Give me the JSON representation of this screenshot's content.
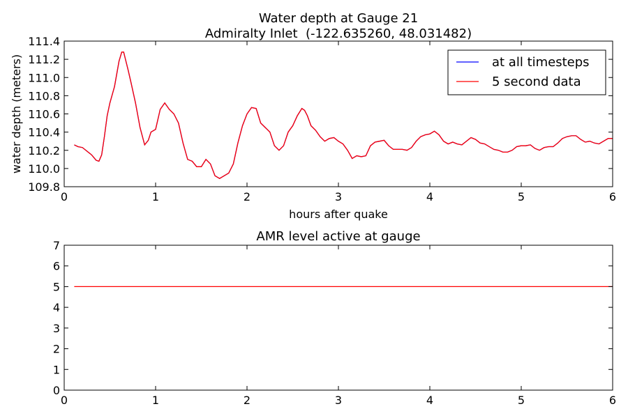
{
  "chart_data": [
    {
      "type": "line",
      "title": "Water depth at Gauge 21",
      "subtitle": "Admiralty Inlet  (-122.635260, 48.031482)",
      "xlabel": "hours after quake",
      "ylabel": "water depth (meters)",
      "xlim": [
        0,
        6
      ],
      "ylim": [
        109.8,
        111.4
      ],
      "xticks": [
        "0",
        "1",
        "2",
        "3",
        "4",
        "5",
        "6"
      ],
      "yticks": [
        "109.8",
        "110.0",
        "110.2",
        "110.4",
        "110.6",
        "110.8",
        "111.0",
        "111.2",
        "111.4"
      ],
      "grid": false,
      "legend_position": "top-right",
      "series": [
        {
          "name": "at all timesteps",
          "color": "#0000ff",
          "x": [
            0.11,
            0.15,
            0.2,
            0.25,
            0.3,
            0.35,
            0.38,
            0.41,
            0.44,
            0.47,
            0.5,
            0.55,
            0.6,
            0.63,
            0.65,
            0.67,
            0.7,
            0.73,
            0.78,
            0.83,
            0.88,
            0.92,
            0.95,
            1.0,
            1.05,
            1.1,
            1.15,
            1.2,
            1.25,
            1.3,
            1.35,
            1.4,
            1.45,
            1.5,
            1.55,
            1.6,
            1.65,
            1.7,
            1.75,
            1.8,
            1.85,
            1.9,
            1.95,
            2.0,
            2.05,
            2.1,
            2.15,
            2.2,
            2.25,
            2.3,
            2.35,
            2.4,
            2.45,
            2.5,
            2.55,
            2.6,
            2.63,
            2.66,
            2.7,
            2.75,
            2.8,
            2.85,
            2.9,
            2.95,
            3.0,
            3.05,
            3.1,
            3.15,
            3.2,
            3.25,
            3.3,
            3.35,
            3.4,
            3.45,
            3.5,
            3.55,
            3.6,
            3.65,
            3.7,
            3.75,
            3.8,
            3.85,
            3.9,
            3.95,
            4.0,
            4.05,
            4.1,
            4.15,
            4.2,
            4.25,
            4.3,
            4.35,
            4.4,
            4.45,
            4.5,
            4.55,
            4.6,
            4.65,
            4.7,
            4.75,
            4.8,
            4.85,
            4.9,
            4.95,
            5.0,
            5.05,
            5.1,
            5.15,
            5.2,
            5.25,
            5.3,
            5.35,
            5.4,
            5.45,
            5.5,
            5.55,
            5.6,
            5.65,
            5.7,
            5.75,
            5.8,
            5.85,
            5.9,
            5.95,
            6.0
          ],
          "values": [
            110.26,
            110.24,
            110.23,
            110.19,
            110.15,
            110.09,
            110.08,
            110.15,
            110.35,
            110.58,
            110.72,
            110.9,
            111.18,
            111.28,
            111.28,
            111.2,
            111.08,
            110.95,
            110.72,
            110.45,
            110.26,
            110.31,
            110.4,
            110.43,
            110.65,
            110.72,
            110.65,
            110.6,
            110.5,
            110.28,
            110.1,
            110.08,
            110.02,
            110.02,
            110.1,
            110.05,
            109.92,
            109.89,
            109.92,
            109.95,
            110.05,
            110.28,
            110.47,
            110.6,
            110.67,
            110.66,
            110.5,
            110.45,
            110.4,
            110.25,
            110.2,
            110.25,
            110.4,
            110.47,
            110.58,
            110.66,
            110.64,
            110.58,
            110.47,
            110.42,
            110.35,
            110.3,
            110.33,
            110.34,
            110.3,
            110.27,
            110.2,
            110.11,
            110.14,
            110.13,
            110.14,
            110.25,
            110.29,
            110.3,
            110.31,
            110.25,
            110.21,
            110.21,
            110.21,
            110.2,
            110.23,
            110.3,
            110.35,
            110.37,
            110.38,
            110.41,
            110.37,
            110.3,
            110.27,
            110.29,
            110.27,
            110.26,
            110.3,
            110.34,
            110.32,
            110.28,
            110.27,
            110.24,
            110.21,
            110.2,
            110.18,
            110.18,
            110.2,
            110.24,
            110.25,
            110.25,
            110.26,
            110.22,
            110.2,
            110.23,
            110.24,
            110.24,
            110.28,
            110.33,
            110.35,
            110.36,
            110.36,
            110.32,
            110.29,
            110.3,
            110.28,
            110.27,
            110.3,
            110.33,
            110.33
          ]
        },
        {
          "name": "5 second data",
          "color": "#ff0000",
          "x": [
            0.11,
            0.15,
            0.2,
            0.25,
            0.3,
            0.35,
            0.38,
            0.41,
            0.44,
            0.47,
            0.5,
            0.55,
            0.6,
            0.63,
            0.65,
            0.67,
            0.7,
            0.73,
            0.78,
            0.83,
            0.88,
            0.92,
            0.95,
            1.0,
            1.05,
            1.1,
            1.15,
            1.2,
            1.25,
            1.3,
            1.35,
            1.4,
            1.45,
            1.5,
            1.55,
            1.6,
            1.65,
            1.7,
            1.75,
            1.8,
            1.85,
            1.9,
            1.95,
            2.0,
            2.05,
            2.1,
            2.15,
            2.2,
            2.25,
            2.3,
            2.35,
            2.4,
            2.45,
            2.5,
            2.55,
            2.6,
            2.63,
            2.66,
            2.7,
            2.75,
            2.8,
            2.85,
            2.9,
            2.95,
            3.0,
            3.05,
            3.1,
            3.15,
            3.2,
            3.25,
            3.3,
            3.35,
            3.4,
            3.45,
            3.5,
            3.55,
            3.6,
            3.65,
            3.7,
            3.75,
            3.8,
            3.85,
            3.9,
            3.95,
            4.0,
            4.05,
            4.1,
            4.15,
            4.2,
            4.25,
            4.3,
            4.35,
            4.4,
            4.45,
            4.5,
            4.55,
            4.6,
            4.65,
            4.7,
            4.75,
            4.8,
            4.85,
            4.9,
            4.95,
            5.0,
            5.05,
            5.1,
            5.15,
            5.2,
            5.25,
            5.3,
            5.35,
            5.4,
            5.45,
            5.5,
            5.55,
            5.6,
            5.65,
            5.7,
            5.75,
            5.8,
            5.85,
            5.9,
            5.95,
            6.0
          ],
          "values": [
            110.26,
            110.24,
            110.23,
            110.19,
            110.15,
            110.09,
            110.08,
            110.15,
            110.35,
            110.58,
            110.72,
            110.9,
            111.18,
            111.28,
            111.28,
            111.2,
            111.08,
            110.95,
            110.72,
            110.45,
            110.26,
            110.31,
            110.4,
            110.43,
            110.65,
            110.72,
            110.65,
            110.6,
            110.5,
            110.28,
            110.1,
            110.08,
            110.02,
            110.02,
            110.1,
            110.05,
            109.92,
            109.89,
            109.92,
            109.95,
            110.05,
            110.28,
            110.47,
            110.6,
            110.67,
            110.66,
            110.5,
            110.45,
            110.4,
            110.25,
            110.2,
            110.25,
            110.4,
            110.47,
            110.58,
            110.66,
            110.64,
            110.58,
            110.47,
            110.42,
            110.35,
            110.3,
            110.33,
            110.34,
            110.3,
            110.27,
            110.2,
            110.11,
            110.14,
            110.13,
            110.14,
            110.25,
            110.29,
            110.3,
            110.31,
            110.25,
            110.21,
            110.21,
            110.21,
            110.2,
            110.23,
            110.3,
            110.35,
            110.37,
            110.38,
            110.41,
            110.37,
            110.3,
            110.27,
            110.29,
            110.27,
            110.26,
            110.3,
            110.34,
            110.32,
            110.28,
            110.27,
            110.24,
            110.21,
            110.2,
            110.18,
            110.18,
            110.2,
            110.24,
            110.25,
            110.25,
            110.26,
            110.22,
            110.2,
            110.23,
            110.24,
            110.24,
            110.28,
            110.33,
            110.35,
            110.36,
            110.36,
            110.32,
            110.29,
            110.3,
            110.28,
            110.27,
            110.3,
            110.33,
            110.33
          ]
        }
      ]
    },
    {
      "type": "line",
      "title": "AMR level active at gauge",
      "xlim": [
        0,
        6
      ],
      "ylim": [
        0,
        7
      ],
      "xticks": [
        "0",
        "1",
        "2",
        "3",
        "4",
        "5",
        "6"
      ],
      "yticks": [
        "0",
        "1",
        "2",
        "3",
        "4",
        "5",
        "6",
        "7"
      ],
      "grid": false,
      "series": [
        {
          "color": "#ff0000",
          "x": [
            0.11,
            6.0
          ],
          "values": [
            5,
            5
          ]
        }
      ]
    }
  ]
}
